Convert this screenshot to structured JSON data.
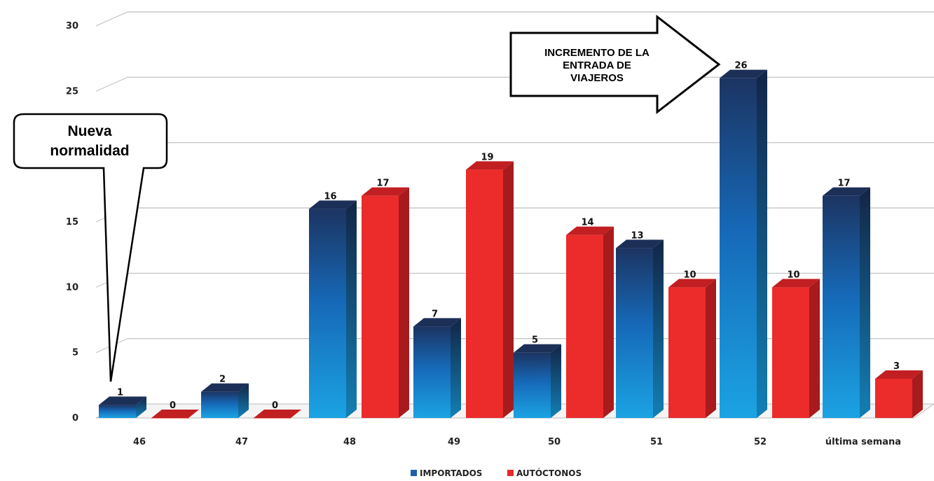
{
  "chart_data": {
    "type": "bar",
    "categories": [
      "46",
      "47",
      "48",
      "49",
      "50",
      "51",
      "52",
      "última semana"
    ],
    "series": [
      {
        "name": "IMPORTADOS",
        "values": [
          1,
          2,
          16,
          7,
          5,
          13,
          26,
          17
        ],
        "color": "#1f5fa8"
      },
      {
        "name": "AUTÓCTONOS",
        "values": [
          0,
          0,
          17,
          19,
          14,
          10,
          10,
          3
        ],
        "color": "#e8282b"
      }
    ],
    "ylim": [
      0,
      30
    ],
    "yticks": [
      0,
      5,
      10,
      15,
      20,
      25,
      30
    ],
    "grid": true,
    "legend_position": "bottom",
    "annotations": {
      "callout": [
        "Nueva",
        "normalidad"
      ],
      "arrow": [
        "INCREMENTO DE LA",
        "ENTRADA DE",
        "VIAJEROS"
      ]
    }
  },
  "colors": {
    "imported_light": "#1ba3e3",
    "imported_dark": "#1c3462",
    "autochthonous_front": "#ec2b2b",
    "autochthonous_side": "#a71b1d",
    "grid": "#bdbdbd"
  }
}
